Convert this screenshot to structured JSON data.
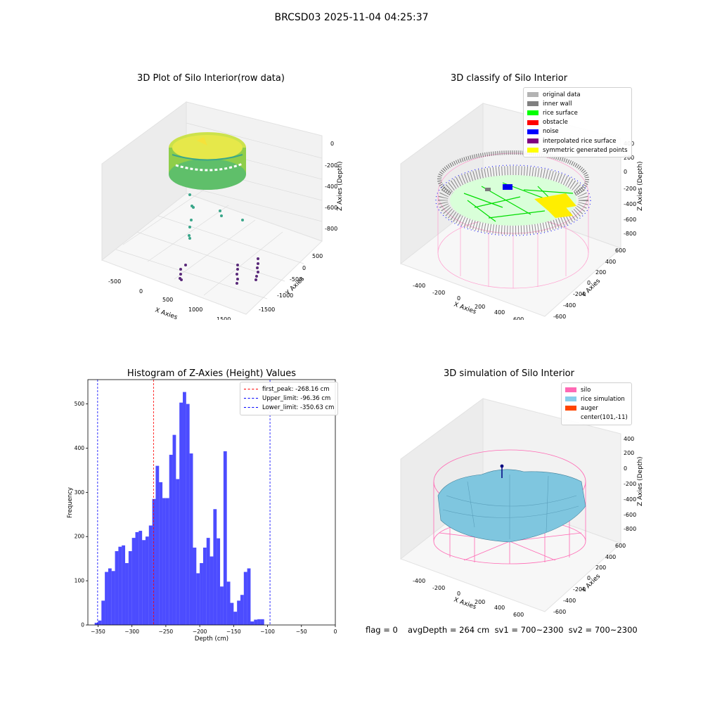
{
  "suptitle": "BRCSD03 2025-11-04 04:25:37",
  "status": {
    "flag": "flag = 0",
    "avg": "avgDepth = 264 cm  sv1 = 700~2300  sv2 = 700~2300"
  },
  "panels": {
    "raw": {
      "title": "3D Plot of Silo Interior(row data)",
      "xlabel": "X Axies",
      "ylabel": "Y Axies",
      "zlabel": "Z Axies (Depth)",
      "xticks": [
        "-500",
        "0",
        "500",
        "1000",
        "1500"
      ],
      "yticks": [
        "500",
        "0",
        "-500",
        "-1000",
        "-1500"
      ],
      "zticks": [
        "0",
        "-200",
        "-400",
        "-600",
        "-800"
      ]
    },
    "classify": {
      "title": "3D classify of Silo Interior",
      "xlabel": "X Axies",
      "ylabel": "Y Axies",
      "zlabel": "Z Axies (Depth)",
      "xticks": [
        "-400",
        "-200",
        "0",
        "200",
        "400",
        "600"
      ],
      "yticks": [
        "600",
        "400",
        "200",
        "0",
        "-200",
        "-400",
        "-600"
      ],
      "zticks": [
        "400",
        "200",
        "0",
        "-200",
        "-400",
        "-600",
        "-800"
      ],
      "legend": [
        {
          "label": "original data",
          "color": "#b3b3b3"
        },
        {
          "label": "inner wall",
          "color": "#808080"
        },
        {
          "label": "rice surface",
          "color": "#00ff00"
        },
        {
          "label": "obstacle",
          "color": "#ff0000"
        },
        {
          "label": "noise",
          "color": "#0000ff"
        },
        {
          "label": "interpolated rice surface",
          "color": "#800080"
        },
        {
          "label": "symmetric generated points",
          "color": "#ffff00"
        }
      ]
    },
    "simulation": {
      "title": "3D simulation of Silo Interior",
      "xlabel": "X Axies",
      "ylabel": "Y Axies",
      "zlabel": "Z Axies (Depth)",
      "xticks": [
        "-400",
        "-200",
        "0",
        "200",
        "400",
        "600"
      ],
      "yticks": [
        "600",
        "400",
        "200",
        "0",
        "-200",
        "-400",
        "-600"
      ],
      "zticks": [
        "400",
        "200",
        "0",
        "-200",
        "-400",
        "-600",
        "-800"
      ],
      "legend": [
        {
          "label": "silo",
          "color": "#ff69b4"
        },
        {
          "label": "rice simulation",
          "color": "#87ceeb"
        },
        {
          "label": "auger",
          "color": "#ff4500"
        },
        {
          "label": "center(101,-11)",
          "color": ""
        }
      ]
    }
  },
  "chart_data": [
    {
      "type": "bar",
      "title": "Histogram of Z-Axies (Height) Values",
      "xlabel": "Depth (cm)",
      "ylabel": "Frequency",
      "xlim": [
        -365,
        0
      ],
      "ylim": [
        0,
        555
      ],
      "xticks": [
        -350,
        -300,
        -250,
        -200,
        -150,
        -100,
        -50,
        0
      ],
      "yticks": [
        0,
        100,
        200,
        300,
        400,
        500
      ],
      "bar_color": "#0000ff",
      "bins": [
        [
          -355,
          -350,
          5
        ],
        [
          -350,
          -345,
          10
        ],
        [
          -345,
          -340,
          55
        ],
        [
          -340,
          -335,
          120
        ],
        [
          -335,
          -330,
          128
        ],
        [
          -330,
          -325,
          122
        ],
        [
          -325,
          -320,
          167
        ],
        [
          -320,
          -315,
          177
        ],
        [
          -315,
          -310,
          180
        ],
        [
          -310,
          -305,
          140
        ],
        [
          -305,
          -300,
          167
        ],
        [
          -300,
          -295,
          197
        ],
        [
          -295,
          -290,
          210
        ],
        [
          -290,
          -285,
          213
        ],
        [
          -285,
          -280,
          192
        ],
        [
          -280,
          -275,
          200
        ],
        [
          -275,
          -270,
          225
        ],
        [
          -270,
          -265,
          285
        ],
        [
          -265,
          -260,
          360
        ],
        [
          -260,
          -255,
          323
        ],
        [
          -255,
          -250,
          287
        ],
        [
          -250,
          -245,
          287
        ],
        [
          -245,
          -240,
          385
        ],
        [
          -240,
          -235,
          430
        ],
        [
          -235,
          -230,
          330
        ],
        [
          -230,
          -225,
          503
        ],
        [
          -225,
          -220,
          527
        ],
        [
          -220,
          -215,
          500
        ],
        [
          -215,
          -210,
          388
        ],
        [
          -210,
          -205,
          175
        ],
        [
          -205,
          -200,
          117
        ],
        [
          -200,
          -195,
          140
        ],
        [
          -195,
          -190,
          175
        ],
        [
          -190,
          -185,
          197
        ],
        [
          -185,
          -180,
          155
        ],
        [
          -180,
          -175,
          262
        ],
        [
          -175,
          -170,
          196
        ],
        [
          -170,
          -165,
          87
        ],
        [
          -165,
          -160,
          393
        ],
        [
          -160,
          -155,
          98
        ],
        [
          -155,
          -150,
          50
        ],
        [
          -150,
          -145,
          30
        ],
        [
          -145,
          -140,
          55
        ],
        [
          -140,
          -135,
          68
        ],
        [
          -135,
          -130,
          120
        ],
        [
          -130,
          -125,
          128
        ],
        [
          -125,
          -120,
          8
        ],
        [
          -120,
          -115,
          12
        ],
        [
          -115,
          -110,
          13
        ],
        [
          -110,
          -105,
          13
        ]
      ],
      "vlines": [
        {
          "label": "first_peak: -268.16 cm",
          "x": -268.16,
          "color": "#ff0000"
        },
        {
          "label": "Upper_limit: -96.36 cm",
          "x": -96.36,
          "color": "#0000ff"
        },
        {
          "label": "Lower_limit: -350.63 cm",
          "x": -350.63,
          "color": "#0000ff"
        }
      ],
      "legend_position": "top-right",
      "grid": false
    }
  ]
}
